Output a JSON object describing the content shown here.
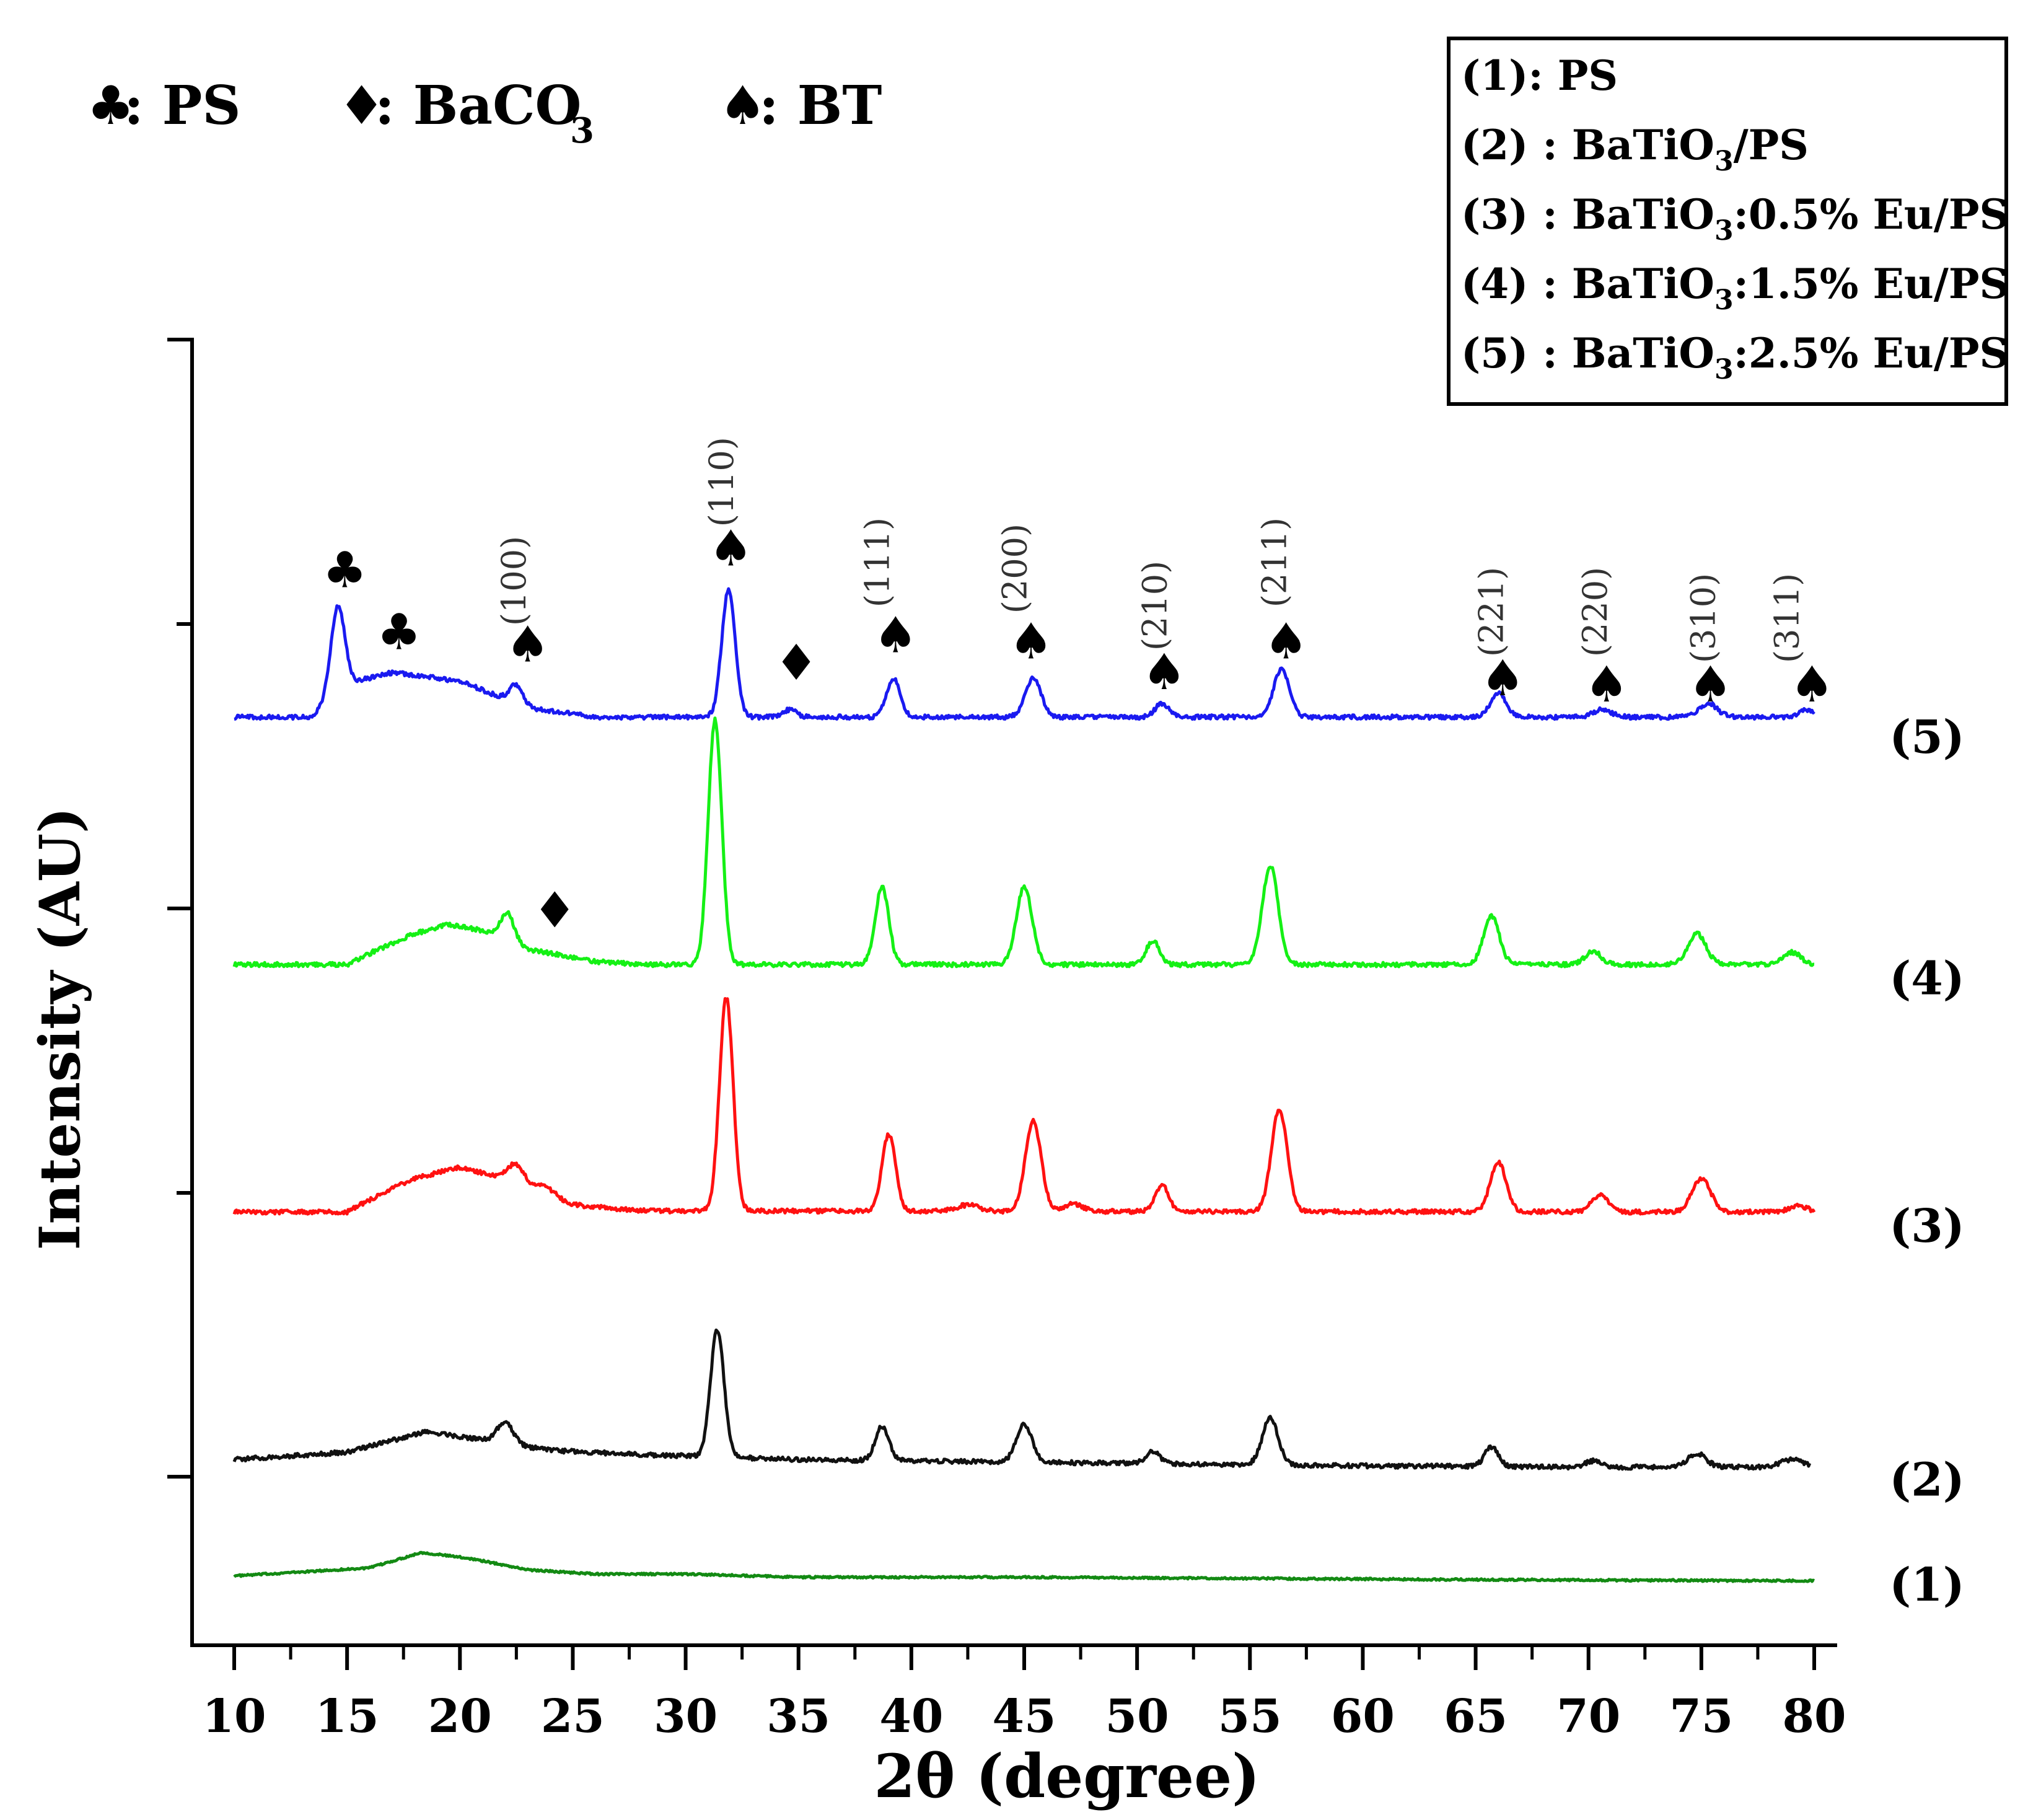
{
  "chart_data": {
    "type": "line",
    "title": "",
    "xlabel": "2θ (degree)",
    "ylabel": "Intensity (AU)",
    "xlim": [
      10,
      80
    ],
    "xticks": [
      10,
      15,
      20,
      25,
      30,
      35,
      40,
      45,
      50,
      55,
      60,
      65,
      70,
      75,
      80
    ],
    "ylim": [
      -2.6,
      18.5
    ],
    "phase_legend": [
      {
        "symbol": "♣",
        "label": ": PS"
      },
      {
        "symbol": "♦",
        "label": ": BaCO",
        "sub": "3"
      },
      {
        "symbol": "♠",
        "label": ": BT"
      }
    ],
    "sample_legend": [
      {
        "pre": "(1): PS",
        "sub": "",
        "post": ""
      },
      {
        "pre": "(2) : BaTiO",
        "sub": "3",
        "post": "/PS"
      },
      {
        "pre": "(3) : BaTiO",
        "sub": "3",
        "post": ":0.5% Eu/PS"
      },
      {
        "pre": "(4)  : BaTiO",
        "sub": "3",
        "post": ":1.5% Eu/PS"
      },
      {
        "pre": "(5)  : BaTiO",
        "sub": "3",
        "post": ":2.5% Eu/PS"
      }
    ],
    "series": [
      {
        "name": "(1)",
        "color": "#138a13",
        "offset": -1.5,
        "end_x": 80,
        "baseline": [
          [
            10,
            0.02
          ],
          [
            16,
            0.15
          ],
          [
            18.3,
            0.4
          ],
          [
            20.5,
            0.3
          ],
          [
            23,
            0.12
          ],
          [
            26,
            0.05
          ],
          [
            30,
            0.05
          ],
          [
            35,
            0.0
          ],
          [
            45,
            0.0
          ],
          [
            55,
            -0.02
          ],
          [
            65,
            -0.04
          ],
          [
            80,
            -0.06
          ]
        ],
        "peaks": []
      },
      {
        "name": "(2)",
        "color": "#111111",
        "offset": 0.4,
        "end_x": 79.8,
        "baseline": [
          [
            10,
            0.0
          ],
          [
            15,
            0.12
          ],
          [
            18.5,
            0.45
          ],
          [
            21,
            0.32
          ],
          [
            24,
            0.15
          ],
          [
            28,
            0.08
          ],
          [
            31,
            0.05
          ],
          [
            35,
            0.0
          ],
          [
            45,
            -0.04
          ],
          [
            60,
            -0.1
          ],
          [
            70,
            -0.12
          ],
          [
            80,
            -0.12
          ]
        ],
        "peaks": [
          [
            22.0,
            0.35,
            0.35
          ],
          [
            31.4,
            2.05,
            0.3
          ],
          [
            38.7,
            0.55,
            0.3
          ],
          [
            45.0,
            0.6,
            0.35
          ],
          [
            50.7,
            0.2,
            0.3
          ],
          [
            55.9,
            0.75,
            0.35
          ],
          [
            65.7,
            0.32,
            0.3
          ],
          [
            70.2,
            0.1,
            0.35
          ],
          [
            74.8,
            0.22,
            0.4
          ],
          [
            79.0,
            0.12,
            0.5
          ]
        ]
      },
      {
        "name": "(3)",
        "color": "#ff1111",
        "offset": 4.4,
        "end_x": 80,
        "baseline": [
          [
            10,
            0.0
          ],
          [
            15,
            0.0
          ],
          [
            16,
            0.2
          ],
          [
            18,
            0.55
          ],
          [
            20,
            0.72
          ],
          [
            22,
            0.55
          ],
          [
            25,
            0.12
          ],
          [
            28,
            0.02
          ],
          [
            80,
            0.0
          ]
        ],
        "peaks": [
          [
            22.5,
            0.3,
            0.35
          ],
          [
            23.8,
            0.12,
            0.4
          ],
          [
            31.8,
            3.45,
            0.3
          ],
          [
            39.0,
            1.25,
            0.3
          ],
          [
            42.5,
            0.1,
            0.5
          ],
          [
            45.4,
            1.45,
            0.35
          ],
          [
            47.2,
            0.12,
            0.4
          ],
          [
            51.1,
            0.42,
            0.3
          ],
          [
            56.3,
            1.65,
            0.35
          ],
          [
            66.0,
            0.8,
            0.35
          ],
          [
            70.5,
            0.28,
            0.35
          ],
          [
            75.0,
            0.55,
            0.4
          ],
          [
            79.3,
            0.1,
            0.4
          ]
        ]
      },
      {
        "name": "(4)",
        "color": "#15f015",
        "offset": 8.4,
        "end_x": 80,
        "baseline": [
          [
            10,
            0.0
          ],
          [
            15,
            0.0
          ],
          [
            16,
            0.18
          ],
          [
            18,
            0.5
          ],
          [
            19.5,
            0.65
          ],
          [
            21,
            0.55
          ],
          [
            23,
            0.25
          ],
          [
            26,
            0.05
          ],
          [
            28,
            0.0
          ],
          [
            80,
            0.0
          ]
        ],
        "peaks": [
          [
            22.1,
            0.45,
            0.3
          ],
          [
            31.3,
            3.95,
            0.3
          ],
          [
            38.7,
            1.25,
            0.3
          ],
          [
            45.0,
            1.25,
            0.35
          ],
          [
            50.7,
            0.38,
            0.3
          ],
          [
            55.9,
            1.6,
            0.35
          ],
          [
            65.7,
            0.78,
            0.35
          ],
          [
            70.2,
            0.22,
            0.35
          ],
          [
            74.8,
            0.5,
            0.4
          ],
          [
            79.0,
            0.2,
            0.4
          ]
        ]
      },
      {
        "name": "(5)",
        "color": "#1a1af0",
        "offset": 12.4,
        "end_x": 80,
        "baseline": [
          [
            10,
            0.0
          ],
          [
            13.5,
            0.0
          ],
          [
            14.5,
            0.5
          ],
          [
            17,
            0.72
          ],
          [
            20,
            0.58
          ],
          [
            23,
            0.15
          ],
          [
            26,
            0.0
          ],
          [
            80,
            0.0
          ]
        ],
        "peaks": [
          [
            14.6,
            1.3,
            0.3
          ],
          [
            22.5,
            0.3,
            0.3
          ],
          [
            31.9,
            2.05,
            0.3
          ],
          [
            34.6,
            0.12,
            0.3
          ],
          [
            39.2,
            0.62,
            0.3
          ],
          [
            45.4,
            0.62,
            0.35
          ],
          [
            51.1,
            0.22,
            0.3
          ],
          [
            56.4,
            0.78,
            0.35
          ],
          [
            66.0,
            0.38,
            0.35
          ],
          [
            70.6,
            0.12,
            0.4
          ],
          [
            75.3,
            0.22,
            0.4
          ],
          [
            79.7,
            0.12,
            0.3
          ]
        ]
      }
    ],
    "series_labels": [
      {
        "text": "(1)",
        "y": -1.6
      },
      {
        "text": "(2)",
        "y": 0.1
      },
      {
        "text": "(3)",
        "y": 4.2
      },
      {
        "text": "(4)",
        "y": 8.2
      },
      {
        "text": "(5)",
        "y": 12.1
      }
    ],
    "phase_markers": [
      {
        "symbol": "♣",
        "x": 14.9,
        "y": 14.5
      },
      {
        "symbol": "♣",
        "x": 17.3,
        "y": 13.5
      },
      {
        "symbol": "♠",
        "x": 23.0,
        "y": 13.3
      },
      {
        "symbol": "♦",
        "x": 34.9,
        "y": 13.0
      },
      {
        "symbol": "♠",
        "x": 32.0,
        "y": 14.85
      },
      {
        "symbol": "♠",
        "x": 39.3,
        "y": 13.45
      },
      {
        "symbol": "♠",
        "x": 45.3,
        "y": 13.35
      },
      {
        "symbol": "♠",
        "x": 51.2,
        "y": 12.85
      },
      {
        "symbol": "♠",
        "x": 56.6,
        "y": 13.35
      },
      {
        "symbol": "♠",
        "x": 66.2,
        "y": 12.75
      },
      {
        "symbol": "♠",
        "x": 70.8,
        "y": 12.65
      },
      {
        "symbol": "♠",
        "x": 75.4,
        "y": 12.65
      },
      {
        "symbol": "♠",
        "x": 79.9,
        "y": 12.65
      },
      {
        "symbol": "♦",
        "x": 24.2,
        "y": 9.0
      }
    ],
    "hkl_labels": [
      {
        "text": "(100)",
        "x": 22.9,
        "y": 14.6
      },
      {
        "text": "(110)",
        "x": 32.1,
        "y": 16.2
      },
      {
        "text": "(111)",
        "x": 39.0,
        "y": 14.9
      },
      {
        "text": "(200)",
        "x": 45.1,
        "y": 14.8
      },
      {
        "text": "(210)",
        "x": 51.3,
        "y": 14.2
      },
      {
        "text": "(211)",
        "x": 56.6,
        "y": 14.9
      },
      {
        "text": "(221)",
        "x": 66.2,
        "y": 14.1
      },
      {
        "text": "(220)",
        "x": 70.8,
        "y": 14.1
      },
      {
        "text": "(310)",
        "x": 75.6,
        "y": 14.0
      },
      {
        "text": "(311)",
        "x": 79.3,
        "y": 14.0
      }
    ]
  }
}
